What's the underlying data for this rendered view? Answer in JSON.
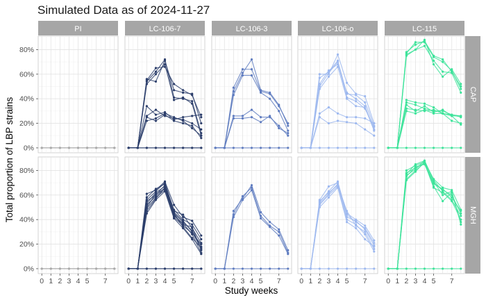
{
  "chart_data": {
    "type": "line",
    "title": "Simulated Data as of 2024-11-27",
    "xlabel": "Study weeks",
    "ylabel": "Total proportion of LBP strains",
    "x_ticks": [
      0,
      1,
      2,
      3,
      4,
      5,
      7
    ],
    "x_tick_labels": [
      "0",
      "1",
      "2",
      "3",
      "4",
      "5",
      "7"
    ],
    "y_ticks": [
      0,
      0.2,
      0.4,
      0.6,
      0.8
    ],
    "y_tick_labels": [
      "0%",
      "20%",
      "40%",
      "60%",
      "80%"
    ],
    "xlim": [
      -0.4,
      8.4
    ],
    "ylim": [
      -0.04,
      0.91
    ],
    "grid": true,
    "columns": [
      "PI",
      "LC-106-7",
      "LC-106-3",
      "LC-106-o",
      "LC-115"
    ],
    "rows": [
      "CAP",
      "MGH"
    ],
    "x": [
      0,
      1,
      2,
      3,
      4,
      5,
      6,
      7,
      8
    ],
    "panels": [
      {
        "column": "PI",
        "row": "CAP",
        "color": "#aaaaaa",
        "series": [
          {
            "values": [
              0,
              0,
              0,
              0,
              0,
              0,
              0,
              0,
              0
            ]
          },
          {
            "values": [
              0,
              0,
              0,
              0,
              0,
              0,
              0,
              0,
              0
            ]
          },
          {
            "values": [
              0,
              0,
              0,
              0,
              0,
              0,
              0,
              0,
              0
            ]
          }
        ]
      },
      {
        "column": "LC-106-7",
        "row": "CAP",
        "color": "#2c3e6b",
        "series": [
          {
            "values": [
              0,
              0,
              0.56,
              0.54,
              0.71,
              0.47,
              0.45,
              0.44,
              0.2
            ]
          },
          {
            "values": [
              0,
              0,
              0.55,
              0.65,
              0.66,
              0.52,
              0.47,
              0.43,
              0.25
            ]
          },
          {
            "values": [
              0,
              0,
              0.54,
              0.62,
              0.72,
              0.41,
              0.4,
              0.38,
              0.12
            ]
          },
          {
            "values": [
              0,
              0,
              0.52,
              0.6,
              0.68,
              0.39,
              0.41,
              0.36,
              0.1
            ]
          },
          {
            "values": [
              0,
              0,
              0.34,
              0.27,
              0.29,
              0.23,
              0.25,
              0.26,
              0.27
            ]
          },
          {
            "values": [
              0,
              0,
              0.26,
              0.31,
              0.26,
              0.24,
              0.23,
              0.2,
              0.15
            ]
          },
          {
            "values": [
              0,
              0,
              0.22,
              0.24,
              0.28,
              0.25,
              0.22,
              0.16,
              0.1
            ]
          },
          {
            "values": [
              0,
              0,
              0.25,
              0.22,
              0.27,
              0.22,
              0.2,
              0.18,
              0.08
            ]
          },
          {
            "values": [
              0,
              0,
              0,
              0,
              0,
              0,
              0,
              0,
              0
            ]
          },
          {
            "values": [
              0,
              0,
              0,
              0,
              0,
              0,
              0,
              0,
              0
            ]
          }
        ]
      },
      {
        "column": "LC-106-3",
        "row": "CAP",
        "color": "#5f7cc0",
        "series": [
          {
            "values": [
              0,
              0,
              0.49,
              0.64,
              0.64,
              0.46,
              0.44,
              0.34,
              0.2
            ]
          },
          {
            "values": [
              0,
              0,
              0.46,
              0.61,
              0.72,
              0.47,
              0.45,
              0.35,
              0.18
            ]
          },
          {
            "values": [
              0,
              0,
              0.43,
              0.59,
              0.59,
              0.45,
              0.4,
              0.3,
              0.14
            ]
          },
          {
            "values": [
              0,
              0,
              0.26,
              0.26,
              0.31,
              0.25,
              0.25,
              0.18,
              0.1
            ]
          },
          {
            "values": [
              0,
              0,
              0.24,
              0.24,
              0.25,
              0.21,
              0.26,
              0.16,
              0.12
            ]
          },
          {
            "values": [
              0,
              0,
              0,
              0,
              0,
              0,
              0,
              0,
              0
            ]
          }
        ]
      },
      {
        "column": "LC-106-o",
        "row": "CAP",
        "color": "#9db8ef",
        "series": [
          {
            "values": [
              0,
              0,
              0.6,
              0.6,
              0.76,
              0.53,
              0.44,
              0.42,
              0.2
            ]
          },
          {
            "values": [
              0,
              0,
              0.57,
              0.62,
              0.71,
              0.44,
              0.43,
              0.37,
              0.18
            ]
          },
          {
            "values": [
              0,
              0,
              0.52,
              0.63,
              0.68,
              0.45,
              0.4,
              0.34,
              0.15
            ]
          },
          {
            "values": [
              0,
              0,
              0.5,
              0.61,
              0.7,
              0.41,
              0.38,
              0.32,
              0.17
            ]
          },
          {
            "values": [
              0,
              0,
              0.48,
              0.58,
              0.66,
              0.4,
              0.34,
              0.33,
              0.14
            ]
          },
          {
            "values": [
              0,
              0,
              0.28,
              0.33,
              0.28,
              0.25,
              0.25,
              0.24,
              0.2
            ]
          },
          {
            "values": [
              0,
              0,
              0.25,
              0.2,
              0.22,
              0.21,
              0.2,
              0.15,
              0.1
            ]
          },
          {
            "values": [
              0,
              0,
              0,
              0,
              0,
              0,
              0,
              0,
              0
            ]
          }
        ]
      },
      {
        "column": "LC-115",
        "row": "CAP",
        "color": "#3de39a",
        "series": [
          {
            "values": [
              0,
              0,
              0.78,
              0.84,
              0.87,
              0.75,
              0.72,
              0.62,
              0.5
            ]
          },
          {
            "values": [
              0,
              0,
              0.77,
              0.86,
              0.86,
              0.74,
              0.7,
              0.63,
              0.48
            ]
          },
          {
            "values": [
              0,
              0,
              0.76,
              0.8,
              0.83,
              0.71,
              0.62,
              0.61,
              0.45
            ]
          },
          {
            "values": [
              0,
              0,
              0.75,
              0.8,
              0.88,
              0.68,
              0.58,
              0.64,
              0.52
            ]
          },
          {
            "values": [
              0,
              0,
              0.39,
              0.37,
              0.36,
              0.33,
              0.28,
              0.27,
              0.26
            ]
          },
          {
            "values": [
              0,
              0,
              0.37,
              0.35,
              0.32,
              0.3,
              0.3,
              0.27,
              0.25
            ]
          },
          {
            "values": [
              0,
              0,
              0.35,
              0.3,
              0.34,
              0.29,
              0.31,
              0.26,
              0.19
            ]
          },
          {
            "values": [
              0,
              0,
              0.32,
              0.31,
              0.3,
              0.31,
              0.28,
              0.22,
              0.2
            ]
          },
          {
            "values": [
              0,
              0,
              0.3,
              0.28,
              0.31,
              0.28,
              0.28,
              0.26,
              0.26
            ]
          },
          {
            "values": [
              0,
              0,
              0,
              0,
              0,
              0,
              0,
              0,
              0
            ]
          }
        ]
      },
      {
        "column": "PI",
        "row": "MGH",
        "color": "#aaaaaa",
        "series": [
          {
            "values": [
              0,
              0,
              0,
              0,
              0,
              0,
              0,
              0,
              0
            ]
          },
          {
            "values": [
              0,
              0,
              0,
              0,
              0,
              0,
              0,
              0,
              0
            ]
          },
          {
            "values": [
              0,
              0,
              0,
              0,
              0,
              0,
              0,
              0,
              0
            ]
          }
        ]
      },
      {
        "column": "LC-106-7",
        "row": "MGH",
        "color": "#2c3e6b",
        "series": [
          {
            "values": [
              0,
              0,
              0.61,
              0.64,
              0.71,
              0.52,
              0.42,
              0.39,
              0.27
            ]
          },
          {
            "values": [
              0,
              0,
              0.58,
              0.65,
              0.69,
              0.48,
              0.4,
              0.36,
              0.24
            ]
          },
          {
            "values": [
              0,
              0,
              0.56,
              0.63,
              0.7,
              0.47,
              0.44,
              0.33,
              0.21
            ]
          },
          {
            "values": [
              0,
              0,
              0.55,
              0.6,
              0.68,
              0.45,
              0.38,
              0.31,
              0.18
            ]
          },
          {
            "values": [
              0,
              0,
              0.53,
              0.62,
              0.67,
              0.46,
              0.39,
              0.3,
              0.16
            ]
          },
          {
            "values": [
              0,
              0,
              0.52,
              0.59,
              0.66,
              0.44,
              0.36,
              0.34,
              0.15
            ]
          },
          {
            "values": [
              0,
              0,
              0.5,
              0.61,
              0.65,
              0.43,
              0.37,
              0.28,
              0.13
            ]
          },
          {
            "values": [
              0,
              0,
              0.49,
              0.58,
              0.64,
              0.42,
              0.35,
              0.29,
              0.2
            ]
          },
          {
            "values": [
              0,
              0,
              0.47,
              0.57,
              0.66,
              0.45,
              0.34,
              0.25,
              0.17
            ]
          },
          {
            "values": [
              0,
              0,
              0.45,
              0.56,
              0.63,
              0.41,
              0.33,
              0.24,
              0.12
            ]
          },
          {
            "values": [
              0,
              0,
              0,
              0,
              0,
              0,
              0,
              0,
              0
            ]
          },
          {
            "values": [
              0,
              0,
              0,
              0,
              0,
              0,
              0,
              0,
              0
            ]
          }
        ]
      },
      {
        "column": "LC-106-3",
        "row": "MGH",
        "color": "#5f7cc0",
        "series": [
          {
            "values": [
              0,
              0,
              0.47,
              0.57,
              0.68,
              0.46,
              0.38,
              0.32,
              0.15
            ]
          },
          {
            "values": [
              0,
              0,
              0.44,
              0.59,
              0.66,
              0.43,
              0.35,
              0.3,
              0.13
            ]
          },
          {
            "values": [
              0,
              0,
              0.42,
              0.56,
              0.64,
              0.41,
              0.34,
              0.27,
              0.12
            ]
          },
          {
            "values": [
              0,
              0,
              0,
              0,
              0,
              0,
              0,
              0,
              0
            ]
          }
        ]
      },
      {
        "column": "LC-106-o",
        "row": "MGH",
        "color": "#9db8ef",
        "series": [
          {
            "values": [
              0,
              0,
              0.56,
              0.67,
              0.7,
              0.45,
              0.4,
              0.35,
              0.23
            ]
          },
          {
            "values": [
              0,
              0,
              0.54,
              0.63,
              0.71,
              0.44,
              0.38,
              0.33,
              0.21
            ]
          },
          {
            "values": [
              0,
              0,
              0.53,
              0.61,
              0.69,
              0.42,
              0.39,
              0.32,
              0.19
            ]
          },
          {
            "values": [
              0,
              0,
              0.55,
              0.62,
              0.68,
              0.47,
              0.35,
              0.3,
              0.16
            ]
          },
          {
            "values": [
              0,
              0,
              0.52,
              0.6,
              0.67,
              0.4,
              0.36,
              0.28,
              0.14
            ]
          },
          {
            "values": [
              0,
              0,
              0.5,
              0.58,
              0.66,
              0.38,
              0.33,
              0.24,
              0.18
            ]
          },
          {
            "values": [
              0,
              0,
              0,
              0,
              0,
              0,
              0,
              0,
              0
            ]
          }
        ]
      },
      {
        "column": "LC-115",
        "row": "MGH",
        "color": "#3de39a",
        "series": [
          {
            "values": [
              0,
              0,
              0.8,
              0.84,
              0.87,
              0.73,
              0.66,
              0.64,
              0.48
            ]
          },
          {
            "values": [
              0,
              0,
              0.78,
              0.82,
              0.86,
              0.7,
              0.64,
              0.6,
              0.45
            ]
          },
          {
            "values": [
              0,
              0,
              0.76,
              0.81,
              0.88,
              0.72,
              0.63,
              0.56,
              0.43
            ]
          },
          {
            "values": [
              0,
              0,
              0.75,
              0.83,
              0.85,
              0.69,
              0.65,
              0.58,
              0.47
            ]
          },
          {
            "values": [
              0,
              0,
              0.73,
              0.8,
              0.86,
              0.66,
              0.62,
              0.55,
              0.4
            ]
          },
          {
            "values": [
              0,
              0,
              0.72,
              0.79,
              0.87,
              0.67,
              0.55,
              0.62,
              0.38
            ]
          },
          {
            "values": [
              0,
              0,
              0.77,
              0.85,
              0.88,
              0.71,
              0.6,
              0.63,
              0.36
            ]
          },
          {
            "values": [
              0,
              0,
              0,
              0,
              0,
              0,
              0,
              0,
              0
            ]
          }
        ]
      }
    ]
  }
}
